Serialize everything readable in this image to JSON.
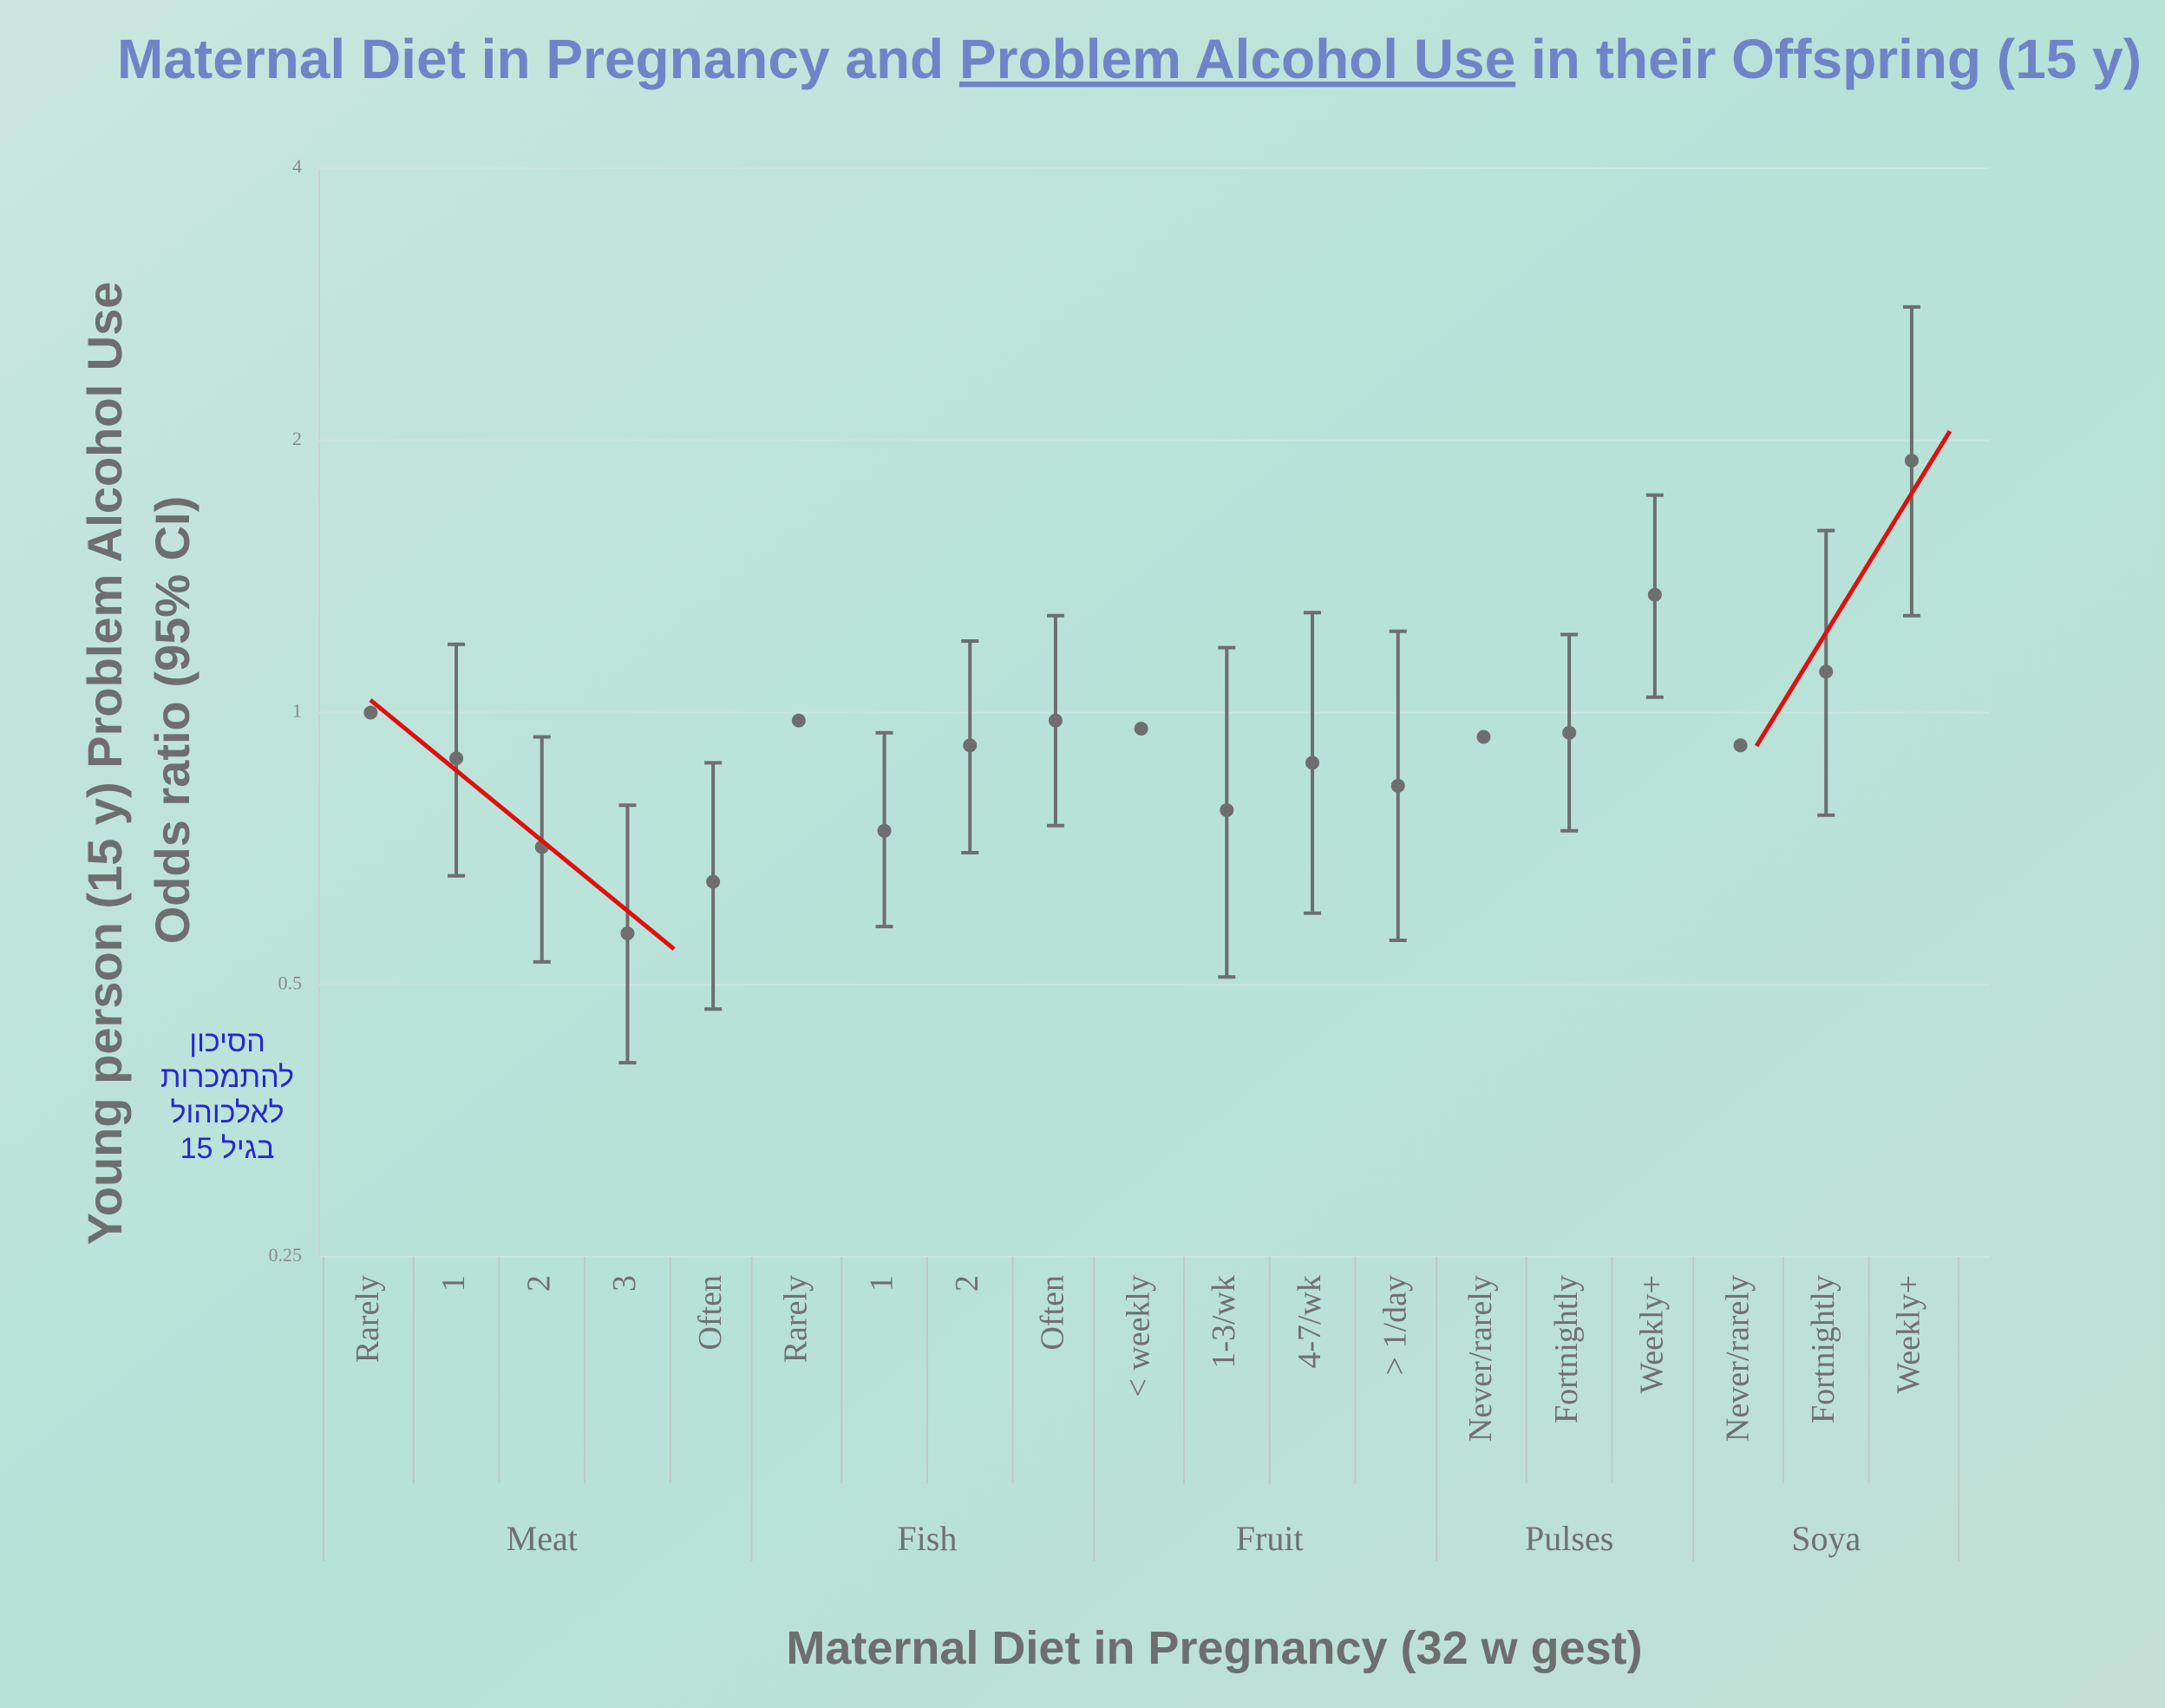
{
  "chart_data": {
    "type": "errorbar",
    "title": [
      "Maternal Diet in Pregnancy and ",
      "Problem Alcohol Use",
      " in their Offspring (15 y)"
    ],
    "ylabel": [
      "Young person (15 y) Problem Alcohol Use",
      "Odds ratio (95% CI)"
    ],
    "xlabel": "Maternal Diet in Pregnancy (32 w gest)",
    "annotation": [
      "הסיכון",
      "להתמכרות",
      "לאלכוהול",
      "בגיל 15"
    ],
    "log_scale": true,
    "grid": true,
    "color": "#6e6e6e",
    "ylim": [
      0.25,
      4
    ],
    "yticks": [
      0.25,
      0.5,
      1,
      2,
      4
    ],
    "groups": [
      {
        "name": "Meat",
        "categories": [
          "Rarely",
          "1",
          "2",
          "3",
          "Often"
        ],
        "values": [
          1.0,
          0.89,
          0.71,
          0.57,
          0.65
        ],
        "lower": [
          null,
          0.66,
          0.53,
          0.41,
          0.47
        ],
        "upper": [
          null,
          1.19,
          0.94,
          0.79,
          0.88
        ]
      },
      {
        "name": "Fish",
        "categories": [
          "Rarely",
          "1",
          "2",
          "Often"
        ],
        "values": [
          0.98,
          0.74,
          0.92,
          0.98
        ],
        "lower": [
          null,
          0.58,
          0.7,
          0.75
        ],
        "upper": [
          null,
          0.95,
          1.2,
          1.28
        ]
      },
      {
        "name": "Fruit",
        "categories": [
          "< weekly",
          "1-3/wk",
          "4-7/wk",
          "> 1/day"
        ],
        "values": [
          0.96,
          0.78,
          0.88,
          0.83
        ],
        "lower": [
          null,
          0.51,
          0.6,
          0.56
        ],
        "upper": [
          null,
          1.18,
          1.29,
          1.23
        ]
      },
      {
        "name": "Pulses",
        "categories": [
          "Never/rarely",
          "Fortnightly",
          "Weekly+"
        ],
        "values": [
          0.94,
          0.95,
          1.35
        ],
        "lower": [
          null,
          0.74,
          1.04
        ],
        "upper": [
          null,
          1.22,
          1.74
        ]
      },
      {
        "name": "Soya",
        "categories": [
          "Never/rarely",
          "Fortnightly",
          "Weekly+"
        ],
        "values": [
          0.92,
          1.11,
          1.9
        ],
        "lower": [
          null,
          0.77,
          1.28
        ],
        "upper": [
          null,
          1.59,
          2.81
        ]
      }
    ]
  }
}
